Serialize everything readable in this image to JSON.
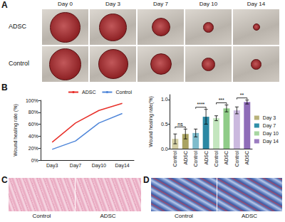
{
  "figure": {
    "panel_letters": [
      "A",
      "B",
      "C",
      "D"
    ],
    "A": {
      "columns": [
        "Day 0",
        "Day 3",
        "Day 7",
        "Day 10",
        "Day 14"
      ],
      "rows": [
        "ADSC",
        "Control"
      ]
    },
    "C": {
      "labels": [
        "Control",
        "ADSC"
      ]
    },
    "D": {
      "labels": [
        "Control",
        "ADSC"
      ]
    }
  },
  "chart_data": [
    {
      "type": "line",
      "ylabel": "Wound healing rate (%)",
      "categories": [
        "Day3",
        "Day7",
        "Day10",
        "Day14"
      ],
      "series": [
        {
          "name": "ADSC",
          "color": "#e8302a",
          "values": [
            30,
            62,
            83,
            95
          ]
        },
        {
          "name": "Control",
          "color": "#4f86d9",
          "values": [
            18,
            32,
            62,
            78
          ]
        }
      ],
      "ylim": [
        0,
        100
      ],
      "yticks": [
        {
          "value": 0,
          "label": "0%"
        },
        {
          "value": 20,
          "label": "20%"
        },
        {
          "value": 40,
          "label": "40%"
        },
        {
          "value": 60,
          "label": "60%"
        },
        {
          "value": 80,
          "label": "80%"
        },
        {
          "value": 100,
          "label": "100%"
        }
      ],
      "grid": false,
      "legend": "top-right"
    },
    {
      "type": "bar",
      "ylabel": "Wound healing rate(%)",
      "categories": [
        "Control",
        "ADSC",
        "Control",
        "ADSC",
        "Control",
        "ADSC",
        "Control",
        "ADSC"
      ],
      "series": [
        {
          "name": "Day 3",
          "color": "#b8b27a",
          "values": [
            0.2,
            0.3,
            null,
            null,
            null,
            null,
            null,
            null
          ],
          "errors": [
            0.1,
            0.1,
            null,
            null,
            null,
            null,
            null,
            null
          ],
          "colors": [
            "#d3cea4",
            "#aaa362",
            null,
            null,
            null,
            null,
            null,
            null
          ]
        },
        {
          "name": "Day 7",
          "color": "#2f8fa8",
          "values": [
            null,
            null,
            0.32,
            0.65,
            null,
            null,
            null,
            null
          ],
          "errors": [
            null,
            null,
            0.08,
            0.15,
            null,
            null,
            null,
            null
          ],
          "colors": [
            null,
            null,
            "#7fbccc",
            "#2c88a3",
            null,
            null,
            null,
            null
          ]
        },
        {
          "name": "Day 10",
          "color": "#a6d6a0",
          "values": [
            null,
            null,
            null,
            null,
            0.62,
            0.82,
            null,
            null
          ],
          "errors": [
            null,
            null,
            null,
            null,
            0.05,
            0.07,
            null,
            null
          ],
          "colors": [
            null,
            null,
            null,
            null,
            "#c4e6bf",
            "#8fcc88",
            null,
            null
          ]
        },
        {
          "name": "Day 14",
          "color": "#9b7cc0",
          "values": [
            null,
            null,
            null,
            null,
            null,
            null,
            0.78,
            0.95
          ],
          "errors": [
            null,
            null,
            null,
            null,
            null,
            null,
            0.07,
            0.04
          ],
          "colors": [
            null,
            null,
            null,
            null,
            null,
            null,
            "#cbb9de",
            "#8f6db8"
          ]
        }
      ],
      "annotations": [
        {
          "text": "ns",
          "between": [
            0,
            1
          ]
        },
        {
          "text": "****",
          "between": [
            2,
            3
          ]
        },
        {
          "text": "***",
          "between": [
            4,
            5
          ]
        },
        {
          "text": "**",
          "between": [
            6,
            7
          ]
        }
      ],
      "ylim": [
        0,
        1.1
      ],
      "yticks": [
        {
          "value": 0,
          "label": "0.0"
        },
        0.5,
        {
          "value": 1,
          "label": "1.0"
        }
      ],
      "grid": false,
      "legend": "right"
    }
  ]
}
